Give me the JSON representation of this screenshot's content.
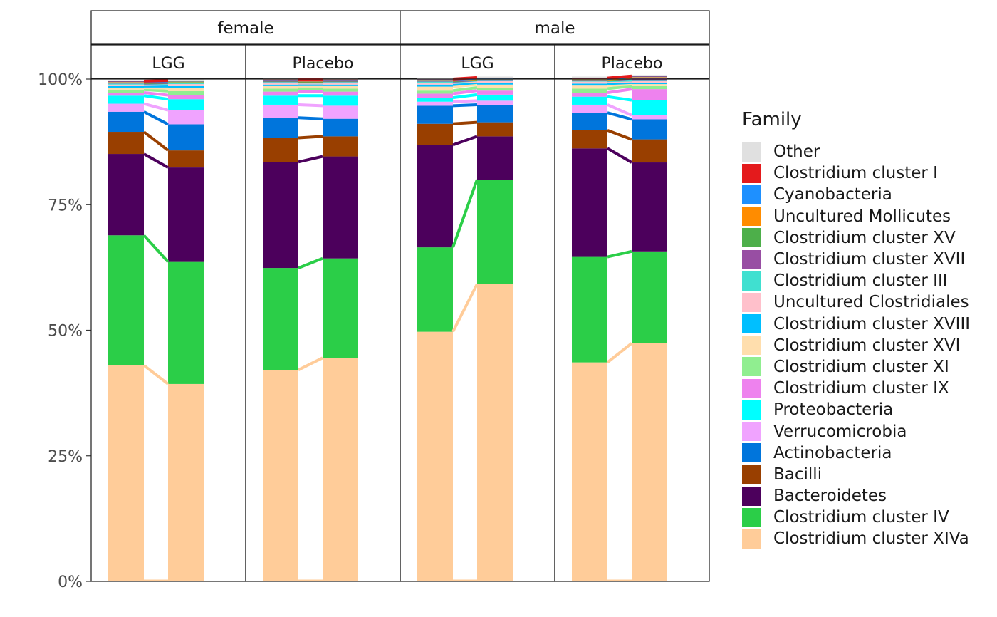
{
  "chart_data": {
    "type": "bar",
    "stacked": true,
    "percent_scale": true,
    "yticks": [
      "0%",
      "25%",
      "50%",
      "75%",
      "100%"
    ],
    "ylim": [
      0,
      1
    ],
    "facet_rows": [
      "female",
      "male"
    ],
    "facet_cols": [
      "LGG",
      "Placebo"
    ],
    "legend_title": "Family",
    "legend_position": "right",
    "series": [
      {
        "name": "Clostridium cluster XIVa",
        "color": "#FFCC99"
      },
      {
        "name": "Clostridium cluster IV",
        "color": "#2BCE48"
      },
      {
        "name": "Bacteroidetes",
        "color": "#4C005C"
      },
      {
        "name": "Bacilli",
        "color": "#993F00"
      },
      {
        "name": "Actinobacteria",
        "color": "#0075DC"
      },
      {
        "name": "Verrucomicrobia",
        "color": "#F0A3FF"
      },
      {
        "name": "Proteobacteria",
        "color": "#00FFFF"
      },
      {
        "name": "Clostridium cluster IX",
        "color": "#EE82EE"
      },
      {
        "name": "Clostridium cluster XI",
        "color": "#90EE90"
      },
      {
        "name": "Clostridium cluster XVI",
        "color": "#FFDEAD"
      },
      {
        "name": "Clostridium cluster XVIII",
        "color": "#00BFFF"
      },
      {
        "name": "Uncultured Clostridiales",
        "color": "#FFC0CB"
      },
      {
        "name": "Clostridium cluster III",
        "color": "#40E0D0"
      },
      {
        "name": "Clostridium cluster XVII",
        "color": "#984EA3"
      },
      {
        "name": "Clostridium cluster XV",
        "color": "#4DAF4A"
      },
      {
        "name": "Uncultured Mollicutes",
        "color": "#FF8C00"
      },
      {
        "name": "Cyanobacteria",
        "color": "#1E90FF"
      },
      {
        "name": "Clostridium cluster I",
        "color": "#E41A1C"
      },
      {
        "name": "Other",
        "color": "#E0E0E0"
      }
    ],
    "panels": [
      {
        "row": "female",
        "col": "LGG",
        "bars": [
          [
            0.43,
            0.259,
            0.162,
            0.044,
            0.04,
            0.016,
            0.016,
            0.006,
            0.006,
            0.004,
            0.003,
            0.003,
            0.002,
            0.001,
            0.001,
            0.001,
            0.001,
            0.001,
            0.002
          ],
          [
            0.393,
            0.243,
            0.188,
            0.034,
            0.052,
            0.028,
            0.022,
            0.008,
            0.008,
            0.006,
            0.004,
            0.004,
            0.002,
            0.001,
            0.001,
            0.001,
            0.001,
            0.001,
            0.002
          ]
        ]
      },
      {
        "row": "female",
        "col": "Placebo",
        "bars": [
          [
            0.421,
            0.203,
            0.211,
            0.048,
            0.04,
            0.026,
            0.018,
            0.008,
            0.006,
            0.005,
            0.003,
            0.003,
            0.002,
            0.001,
            0.001,
            0.001,
            0.001,
            0.001,
            0.002
          ],
          [
            0.445,
            0.198,
            0.203,
            0.04,
            0.035,
            0.026,
            0.02,
            0.008,
            0.006,
            0.005,
            0.003,
            0.003,
            0.002,
            0.001,
            0.001,
            0.001,
            0.001,
            0.001,
            0.002
          ]
        ]
      },
      {
        "row": "male",
        "col": "LGG",
        "bars": [
          [
            0.497,
            0.168,
            0.204,
            0.042,
            0.036,
            0.008,
            0.008,
            0.008,
            0.006,
            0.008,
            0.004,
            0.004,
            0.002,
            0.001,
            0.001,
            0.001,
            0.001,
            0.001,
            0.002
          ],
          [
            0.592,
            0.208,
            0.086,
            0.028,
            0.035,
            0.008,
            0.012,
            0.008,
            0.006,
            0.006,
            0.004,
            0.003,
            0.002,
            0.001,
            0.001,
            0.001,
            0.001,
            0.001,
            0.002
          ]
        ]
      },
      {
        "row": "male",
        "col": "Placebo",
        "bars": [
          [
            0.436,
            0.21,
            0.216,
            0.036,
            0.035,
            0.016,
            0.016,
            0.008,
            0.008,
            0.006,
            0.004,
            0.004,
            0.002,
            0.001,
            0.001,
            0.001,
            0.001,
            0.001,
            0.003
          ],
          [
            0.474,
            0.183,
            0.177,
            0.046,
            0.04,
            0.008,
            0.03,
            0.022,
            0.006,
            0.004,
            0.003,
            0.003,
            0.002,
            0.004,
            0.001,
            0.001,
            0.001,
            0.001,
            0.002
          ]
        ]
      }
    ]
  }
}
